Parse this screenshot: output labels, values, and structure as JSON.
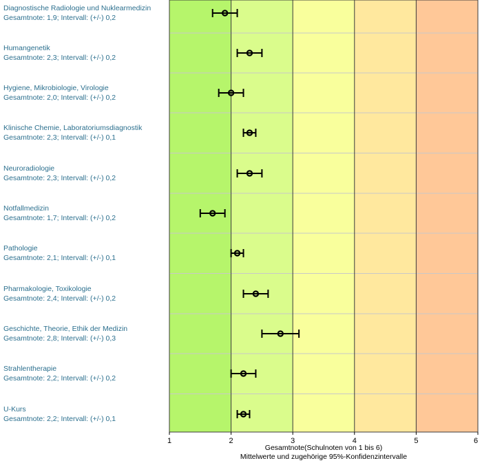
{
  "chart_data": {
    "type": "errorbar",
    "xlim": [
      1,
      6
    ],
    "xticks": [
      "1",
      "2",
      "3",
      "4",
      "5",
      "6"
    ],
    "xlabel": "Gesamtnote(Schulnoten von 1 bis 6)",
    "xlabel2": "Mittelwerte und zugehörige 95%-Konfidenzintervalle",
    "background_bands": [
      {
        "from": 1,
        "to": 2,
        "color": "#b6f56b"
      },
      {
        "from": 2,
        "to": 3,
        "color": "#dafc8c"
      },
      {
        "from": 3,
        "to": 4,
        "color": "#f9ff9c"
      },
      {
        "from": 4,
        "to": 5,
        "color": "#ffe89e"
      },
      {
        "from": 5,
        "to": 6,
        "color": "#ffc898"
      }
    ],
    "grid": true,
    "rows": [
      {
        "name": "Diagnostische Radiologie und Nuklearmedizin",
        "info": "Gesamtnote: 1,9;  Intervall: (+/-) 0,2",
        "mean": 1.9,
        "ci": 0.2
      },
      {
        "name": "Humangenetik",
        "info": "Gesamtnote: 2,3;  Intervall: (+/-) 0,2",
        "mean": 2.3,
        "ci": 0.2
      },
      {
        "name": "Hygiene, Mikrobiologie, Virologie",
        "info": "Gesamtnote: 2,0;  Intervall: (+/-) 0,2",
        "mean": 2.0,
        "ci": 0.2
      },
      {
        "name": "Klinische Chemie, Laboratoriumsdiagnostik",
        "info": "Gesamtnote: 2,3;  Intervall: (+/-) 0,1",
        "mean": 2.3,
        "ci": 0.1
      },
      {
        "name": "Neuroradiologie",
        "info": "Gesamtnote: 2,3;  Intervall: (+/-) 0,2",
        "mean": 2.3,
        "ci": 0.2
      },
      {
        "name": "Notfallmedizin",
        "info": "Gesamtnote: 1,7;  Intervall: (+/-) 0,2",
        "mean": 1.7,
        "ci": 0.2
      },
      {
        "name": "Pathologie",
        "info": "Gesamtnote: 2,1;  Intervall: (+/-) 0,1",
        "mean": 2.1,
        "ci": 0.1
      },
      {
        "name": "Pharmakologie, Toxikologie",
        "info": "Gesamtnote: 2,4;  Intervall: (+/-) 0,2",
        "mean": 2.4,
        "ci": 0.2
      },
      {
        "name": "Geschichte, Theorie, Ethik der Medizin",
        "info": "Gesamtnote: 2,8;  Intervall: (+/-) 0,3",
        "mean": 2.8,
        "ci": 0.3
      },
      {
        "name": "Strahlentherapie",
        "info": "Gesamtnote: 2,2;  Intervall: (+/-) 0,2",
        "mean": 2.2,
        "ci": 0.2
      },
      {
        "name": "U-Kurs",
        "info": "Gesamtnote: 2,2;  Intervall: (+/-) 0,1",
        "mean": 2.2,
        "ci": 0.1
      }
    ]
  }
}
